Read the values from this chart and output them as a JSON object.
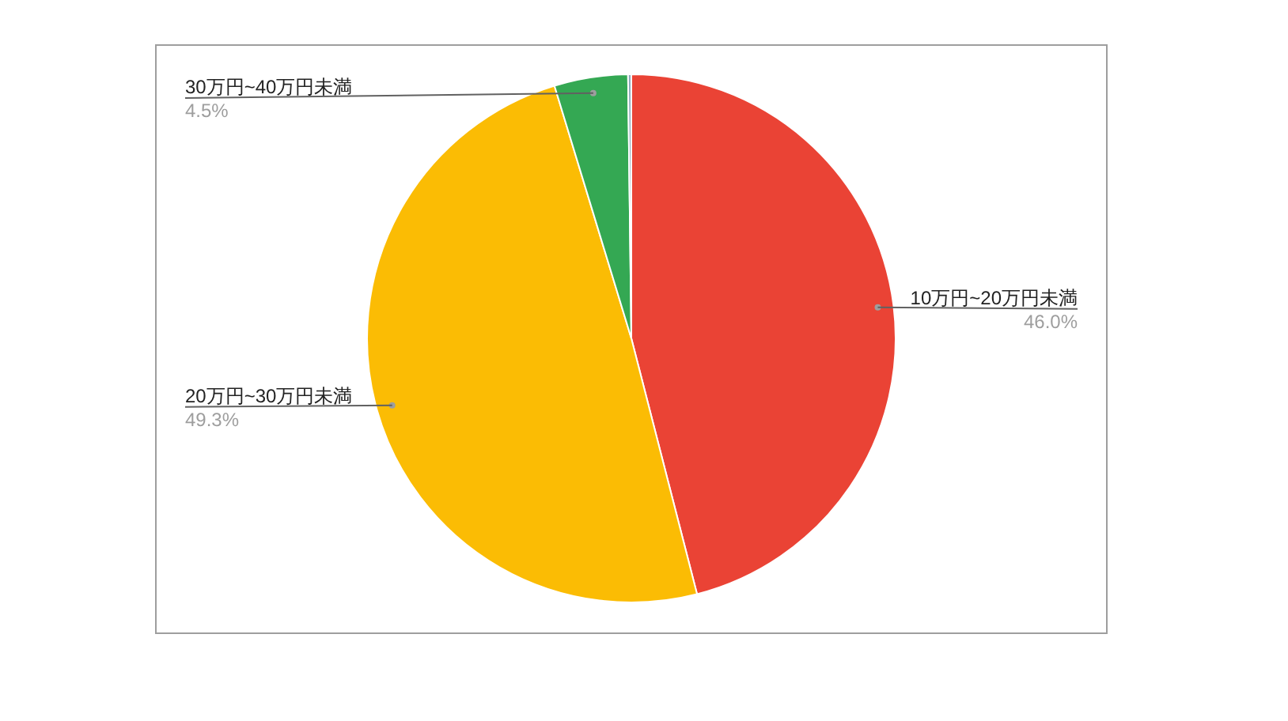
{
  "chart_data": {
    "type": "pie",
    "categories": [
      "10万円~20万円未満",
      "20万円~30万円未満",
      "30万円~40万円未満",
      null
    ],
    "values": [
      46.0,
      49.3,
      4.5,
      0.2
    ],
    "colors": [
      "#ea4335",
      "#fbbc04",
      "#34a853",
      "#8fa9bd"
    ],
    "value_labels": [
      "46.0%",
      "49.3%",
      "4.5%",
      null
    ]
  }
}
